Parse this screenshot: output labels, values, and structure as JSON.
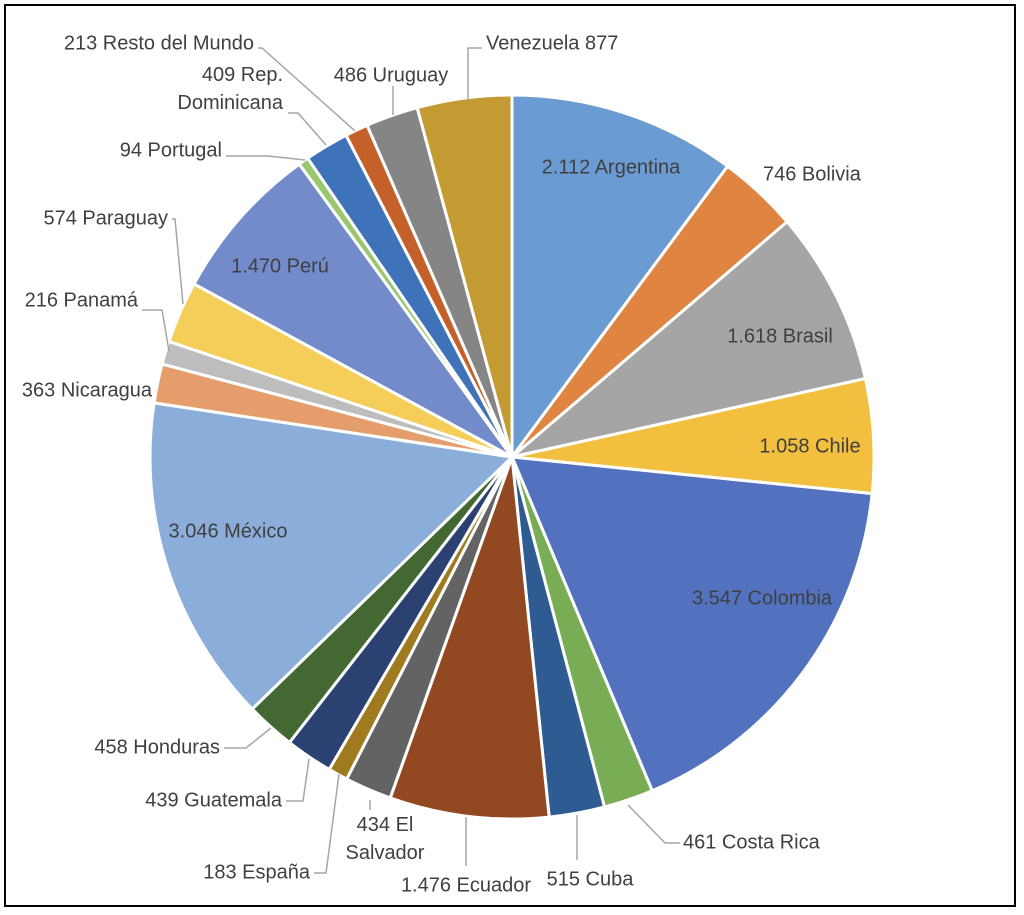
{
  "chart_data": {
    "type": "pie",
    "title": "",
    "slices": [
      {
        "label": "2.112 Argentina",
        "value": 2112,
        "color": "#6a9bd2"
      },
      {
        "label": "746 Bolivia",
        "value": 746,
        "color": "#e08442"
      },
      {
        "label": "1.618 Brasil",
        "value": 1618,
        "color": "#a5a5a5"
      },
      {
        "label": "1.058 Chile",
        "value": 1058,
        "color": "#f3bf3f"
      },
      {
        "label": "3.547 Colombia",
        "value": 3547,
        "color": "#5272bf"
      },
      {
        "label": "461 Costa Rica",
        "value": 461,
        "color": "#79ad55"
      },
      {
        "label": "515 Cuba",
        "value": 515,
        "color": "#2f5b93"
      },
      {
        "label": "1.476 Ecuador",
        "value": 1476,
        "color": "#924921"
      },
      {
        "label": "434 El Salvador",
        "value": 434,
        "color": "#636363"
      },
      {
        "label": "183 España",
        "value": 183,
        "color": "#a07a1f"
      },
      {
        "label": "439 Guatemala",
        "value": 439,
        "color": "#2b4172"
      },
      {
        "label": "458 Honduras",
        "value": 458,
        "color": "#436832"
      },
      {
        "label": "3.046 México",
        "value": 3046,
        "color": "#8aaed9"
      },
      {
        "label": "363 Nicaragua",
        "value": 363,
        "color": "#e69d6c"
      },
      {
        "label": "216 Panamá",
        "value": 216,
        "color": "#bdbdbd"
      },
      {
        "label": "574 Paraguay",
        "value": 574,
        "color": "#f5cd59"
      },
      {
        "label": "1.470 Perú",
        "value": 1470,
        "color": "#738bcb"
      },
      {
        "label": "94 Portugal",
        "value": 94,
        "color": "#98c76d"
      },
      {
        "label": "409 Rep. Dominicana",
        "value": 409,
        "color": "#3f73b9"
      },
      {
        "label": "213 Resto del Mundo",
        "value": 213,
        "color": "#c4602a"
      },
      {
        "label": "486 Uruguay",
        "value": 486,
        "color": "#858585"
      },
      {
        "label": "Venezuela 877",
        "value": 877,
        "color": "#c49a33"
      }
    ]
  }
}
